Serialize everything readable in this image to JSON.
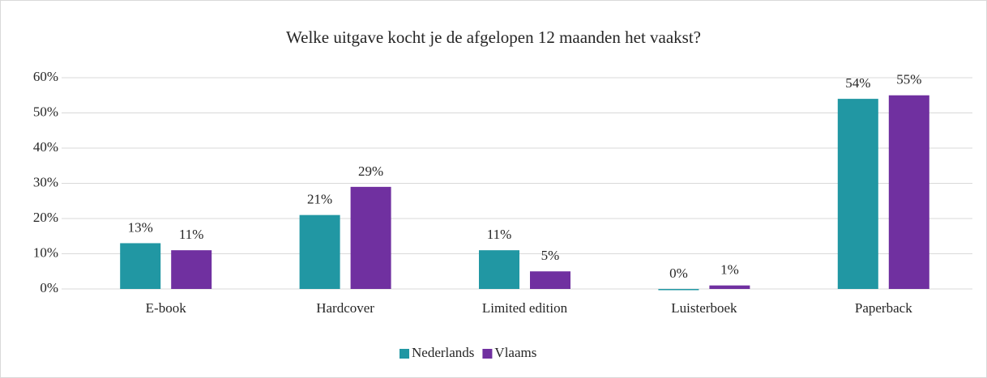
{
  "chart_data": {
    "type": "bar",
    "title": "Welke uitgave kocht je de afgelopen 12 maanden het vaakst?",
    "categories": [
      "E-book",
      "Hardcover",
      "Limited edition",
      "Luisterboek",
      "Paperback"
    ],
    "series": [
      {
        "name": "Nederlands",
        "color": "#2197a3",
        "values": [
          13,
          21,
          11,
          0,
          54
        ],
        "value_labels": [
          "13%",
          "21%",
          "11%",
          "0%",
          "54%"
        ]
      },
      {
        "name": "Vlaams",
        "color": "#7030a0",
        "values": [
          11,
          29,
          5,
          1,
          55
        ],
        "value_labels": [
          "11%",
          "29%",
          "5%",
          "1%",
          "55%"
        ]
      }
    ],
    "ylim": [
      0,
      60
    ],
    "yticks": [
      {
        "value": 0,
        "label": "0%"
      },
      {
        "value": 10,
        "label": "10%"
      },
      {
        "value": 20,
        "label": "20%"
      },
      {
        "value": 30,
        "label": "30%"
      },
      {
        "value": 40,
        "label": "40%"
      },
      {
        "value": 50,
        "label": "50%"
      },
      {
        "value": 60,
        "label": "60%"
      }
    ],
    "grid": true,
    "legend": "bottom"
  }
}
